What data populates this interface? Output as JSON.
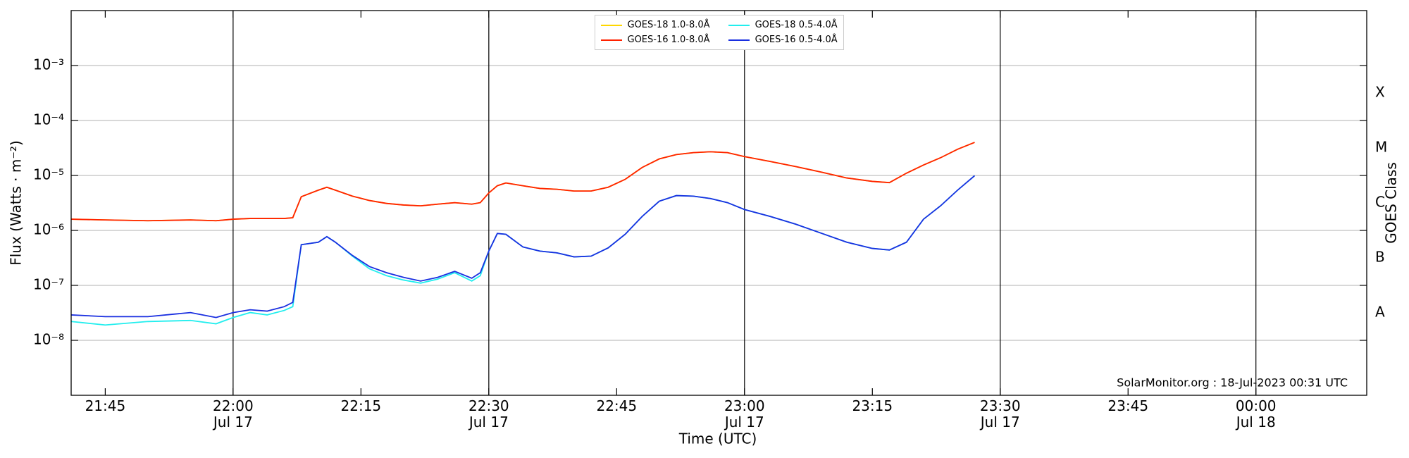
{
  "chart_data": {
    "type": "line",
    "xlabel": "Time (UTC)",
    "ylabel": "Flux (Watts · m⁻²)",
    "y2label": "GOES Class",
    "annotation": "SolarMonitor.org : 18-Jul-2023 00:31 UTC",
    "ylog": true,
    "grid": true,
    "legend": "upper center",
    "x": [
      "Jul 17 21:41",
      "Jul 17 21:45",
      "Jul 17 21:50",
      "Jul 17 21:55",
      "Jul 17 21:58",
      "Jul 17 22:00",
      "Jul 17 22:02",
      "Jul 17 22:04",
      "Jul 17 22:06",
      "Jul 17 22:07",
      "Jul 17 22:08",
      "Jul 17 22:10",
      "Jul 17 22:11",
      "Jul 17 22:12",
      "Jul 17 22:14",
      "Jul 17 22:16",
      "Jul 17 22:18",
      "Jul 17 22:20",
      "Jul 17 22:22",
      "Jul 17 22:24",
      "Jul 17 22:26",
      "Jul 17 22:28",
      "Jul 17 22:29",
      "Jul 17 22:30",
      "Jul 17 22:31",
      "Jul 17 22:32",
      "Jul 17 22:34",
      "Jul 17 22:36",
      "Jul 17 22:38",
      "Jul 17 22:40",
      "Jul 17 22:42",
      "Jul 17 22:44",
      "Jul 17 22:46",
      "Jul 17 22:48",
      "Jul 17 22:50",
      "Jul 17 22:52",
      "Jul 17 22:54",
      "Jul 17 22:56",
      "Jul 17 22:58",
      "Jul 17 23:00",
      "Jul 17 23:03",
      "Jul 17 23:06",
      "Jul 17 23:09",
      "Jul 17 23:12",
      "Jul 17 23:15",
      "Jul 17 23:17",
      "Jul 17 23:19",
      "Jul 17 23:21",
      "Jul 17 23:23",
      "Jul 17 23:25",
      "Jul 17 23:27"
    ],
    "series": [
      {
        "name": "GOES-18 1.0-8.0Å",
        "color": "#ffd700",
        "values": [
          1.6e-06,
          1.55e-06,
          1.5e-06,
          1.55e-06,
          1.5e-06,
          1.6e-06,
          1.65e-06,
          1.65e-06,
          1.65e-06,
          1.7e-06,
          4.1e-06,
          5.4e-06,
          6.1e-06,
          5.4e-06,
          4.2e-06,
          3.5e-06,
          3.1e-06,
          2.9e-06,
          2.8e-06,
          3e-06,
          3.2e-06,
          3e-06,
          3.2e-06,
          4.8e-06,
          6.5e-06,
          7.3e-06,
          6.5e-06,
          5.8e-06,
          5.6e-06,
          5.2e-06,
          5.2e-06,
          6.1e-06,
          8.5e-06,
          1.4e-05,
          2e-05,
          2.4e-05,
          2.6e-05,
          2.7e-05,
          2.6e-05,
          2.2e-05,
          1.8e-05,
          1.45e-05,
          1.15e-05,
          9e-06,
          7.8e-06,
          7.4e-06,
          1.1e-05,
          1.55e-05,
          2.1e-05,
          3e-05,
          4e-05
        ]
      },
      {
        "name": "GOES-16 1.0-8.0Å",
        "color": "#ff2200",
        "values": [
          1.6e-06,
          1.55e-06,
          1.5e-06,
          1.55e-06,
          1.5e-06,
          1.6e-06,
          1.65e-06,
          1.65e-06,
          1.65e-06,
          1.7e-06,
          4.1e-06,
          5.4e-06,
          6.1e-06,
          5.4e-06,
          4.2e-06,
          3.5e-06,
          3.1e-06,
          2.9e-06,
          2.8e-06,
          3e-06,
          3.2e-06,
          3e-06,
          3.2e-06,
          4.8e-06,
          6.5e-06,
          7.3e-06,
          6.5e-06,
          5.8e-06,
          5.6e-06,
          5.2e-06,
          5.2e-06,
          6.1e-06,
          8.5e-06,
          1.4e-05,
          2e-05,
          2.4e-05,
          2.6e-05,
          2.7e-05,
          2.6e-05,
          2.2e-05,
          1.8e-05,
          1.45e-05,
          1.15e-05,
          9e-06,
          7.8e-06,
          7.4e-06,
          1.1e-05,
          1.55e-05,
          2.1e-05,
          3e-05,
          4e-05
        ]
      },
      {
        "name": "GOES-18 0.5-4.0Å",
        "color": "#22eeee",
        "values": [
          2.2e-08,
          1.9e-08,
          2.2e-08,
          2.3e-08,
          2e-08,
          2.6e-08,
          3.2e-08,
          2.9e-08,
          3.5e-08,
          4.1e-08,
          5.5e-07,
          6.1e-07,
          7.7e-07,
          6.1e-07,
          3.4e-07,
          2e-07,
          1.5e-07,
          1.25e-07,
          1.1e-07,
          1.3e-07,
          1.7e-07,
          1.2e-07,
          1.5e-07,
          4.2e-07,
          8.8e-07,
          8.5e-07,
          5e-07,
          4.2e-07,
          3.9e-07,
          3.3e-07,
          3.4e-07,
          4.8e-07,
          8.5e-07,
          1.8e-06,
          3.4e-06,
          4.3e-06,
          4.2e-06,
          3.8e-06,
          3.2e-06,
          2.4e-06,
          1.8e-06,
          1.3e-06,
          8.9e-07,
          6.1e-07,
          4.7e-07,
          4.4e-07,
          6.1e-07,
          1.6e-06,
          2.8e-06,
          5.4e-06,
          9.9e-06
        ]
      },
      {
        "name": "GOES-16 0.5-4.0Å",
        "color": "#1a2fe0",
        "values": [
          2.9e-08,
          2.7e-08,
          2.7e-08,
          3.2e-08,
          2.6e-08,
          3.2e-08,
          3.6e-08,
          3.4e-08,
          4.1e-08,
          4.9e-08,
          5.5e-07,
          6.1e-07,
          7.7e-07,
          6.1e-07,
          3.5e-07,
          2.2e-07,
          1.7e-07,
          1.4e-07,
          1.2e-07,
          1.4e-07,
          1.8e-07,
          1.35e-07,
          1.7e-07,
          4.2e-07,
          8.8e-07,
          8.5e-07,
          5e-07,
          4.2e-07,
          3.9e-07,
          3.3e-07,
          3.4e-07,
          4.8e-07,
          8.5e-07,
          1.8e-06,
          3.4e-06,
          4.3e-06,
          4.2e-06,
          3.8e-06,
          3.2e-06,
          2.4e-06,
          1.8e-06,
          1.3e-06,
          8.9e-07,
          6.1e-07,
          4.7e-07,
          4.4e-07,
          6.1e-07,
          1.6e-06,
          2.8e-06,
          5.4e-06,
          9.9e-06
        ]
      }
    ],
    "xlim": [
      "Jul 17 21:41",
      "Jul 18 00:13"
    ],
    "xticks": [
      {
        "value": "Jul 17 21:45",
        "label": "21:45"
      },
      {
        "value": "Jul 17 22:00",
        "label": "22:00\nJul 17"
      },
      {
        "value": "Jul 17 22:15",
        "label": "22:15"
      },
      {
        "value": "Jul 17 22:30",
        "label": "22:30\nJul 17"
      },
      {
        "value": "Jul 17 22:45",
        "label": "22:45"
      },
      {
        "value": "Jul 17 23:00",
        "label": "23:00\nJul 17"
      },
      {
        "value": "Jul 17 23:15",
        "label": "23:15"
      },
      {
        "value": "Jul 17 23:30",
        "label": "23:30\nJul 17"
      },
      {
        "value": "Jul 17 23:45",
        "label": "23:45"
      },
      {
        "value": "Jul 18 00:00",
        "label": "00:00\nJul 18"
      }
    ],
    "ylim": [
      1e-09,
      0.01
    ],
    "yticks": [
      {
        "value": 1e-08,
        "label": "10⁻⁸"
      },
      {
        "value": 1e-07,
        "label": "10⁻⁷"
      },
      {
        "value": 1e-06,
        "label": "10⁻⁶"
      },
      {
        "value": 1e-05,
        "label": "10⁻⁵"
      },
      {
        "value": 0.0001,
        "label": "10⁻⁴"
      },
      {
        "value": 0.001,
        "label": "10⁻³"
      }
    ],
    "y2lim": [
      1e-09,
      0.01
    ],
    "y2ticks": [
      {
        "value": 3.16e-08,
        "label": "A"
      },
      {
        "value": 3.16e-07,
        "label": "B"
      },
      {
        "value": 3.16e-06,
        "label": "C"
      },
      {
        "value": 3.16e-05,
        "label": "M"
      },
      {
        "value": 0.000316,
        "label": "X"
      }
    ]
  }
}
